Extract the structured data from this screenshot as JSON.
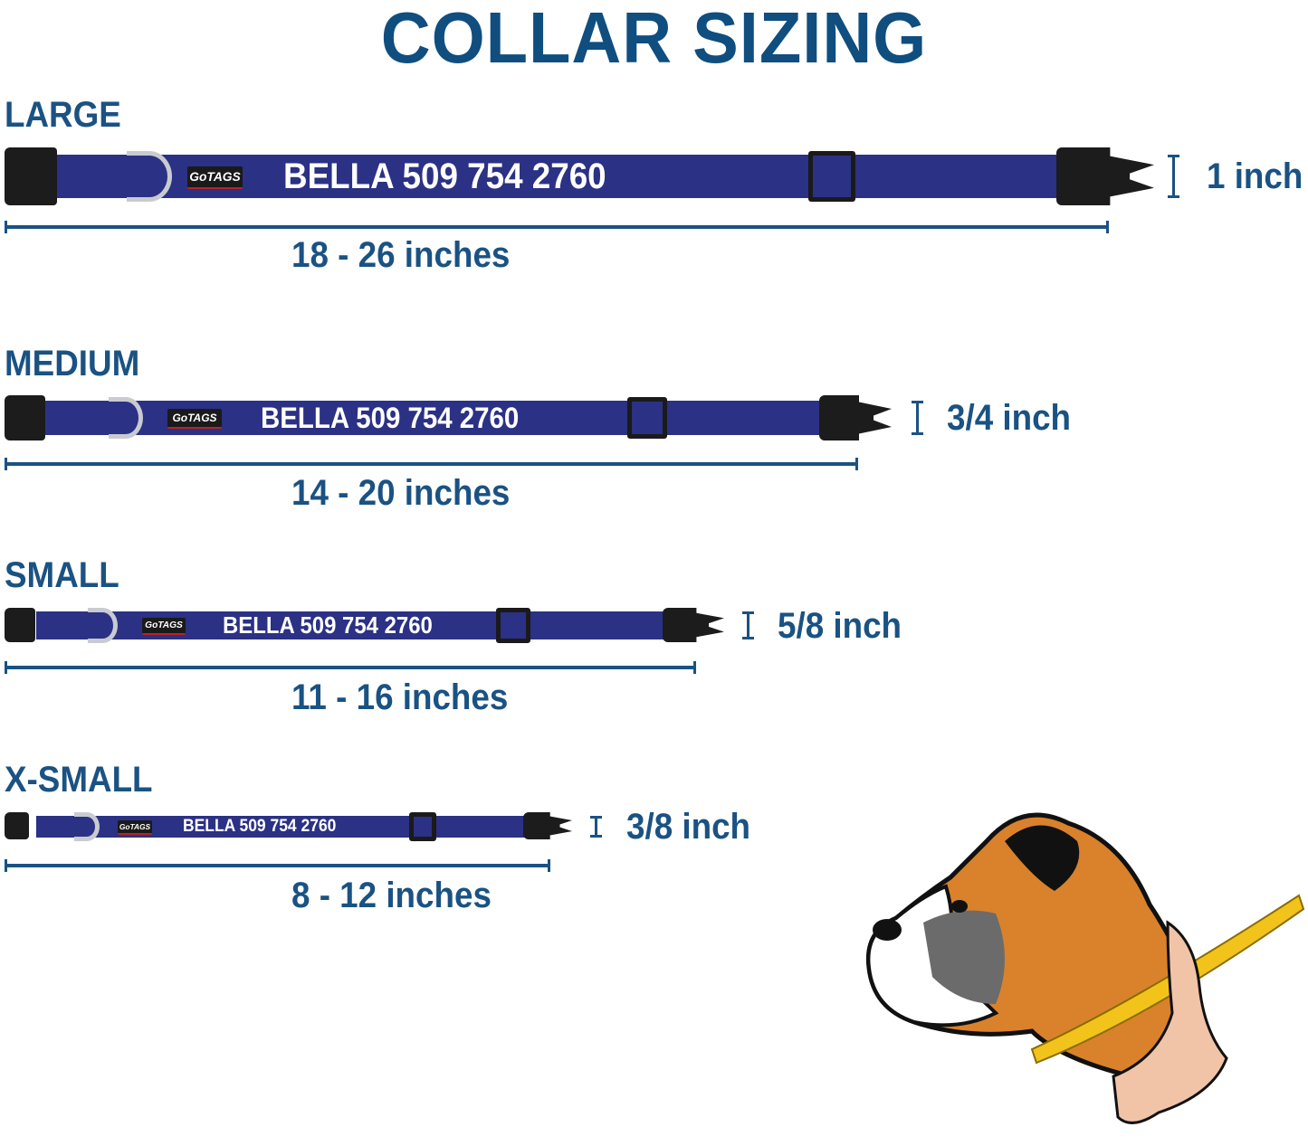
{
  "title": "COLLAR SIZING",
  "colors": {
    "text": "#1a5283",
    "strap": "#2b3184",
    "buckle": "#1c1c1c",
    "d_ring": "#c8cbd0"
  },
  "collars": [
    {
      "size": "LARGE",
      "engraving": "BELLA 509 754 2760",
      "logo": "GoTAGS",
      "width": "1 inch",
      "length": "18 - 26 inches"
    },
    {
      "size": "MEDIUM",
      "engraving": "BELLA 509 754 2760",
      "logo": "GoTAGS",
      "width": "3/4 inch",
      "length": "14 - 20 inches"
    },
    {
      "size": "SMALL",
      "engraving": "BELLA 509 754 2760",
      "logo": "GoTAGS",
      "width": "5/8 inch",
      "length": "11 - 16 inches"
    },
    {
      "size": "X-SMALL",
      "engraving": "BELLA 509 754 2760",
      "logo": "GoTAGS",
      "width": "3/8 inch",
      "length": "8 - 12 inches"
    }
  ],
  "illustration": {
    "subject": "boxer-dog-with-measuring-tape-icon"
  }
}
